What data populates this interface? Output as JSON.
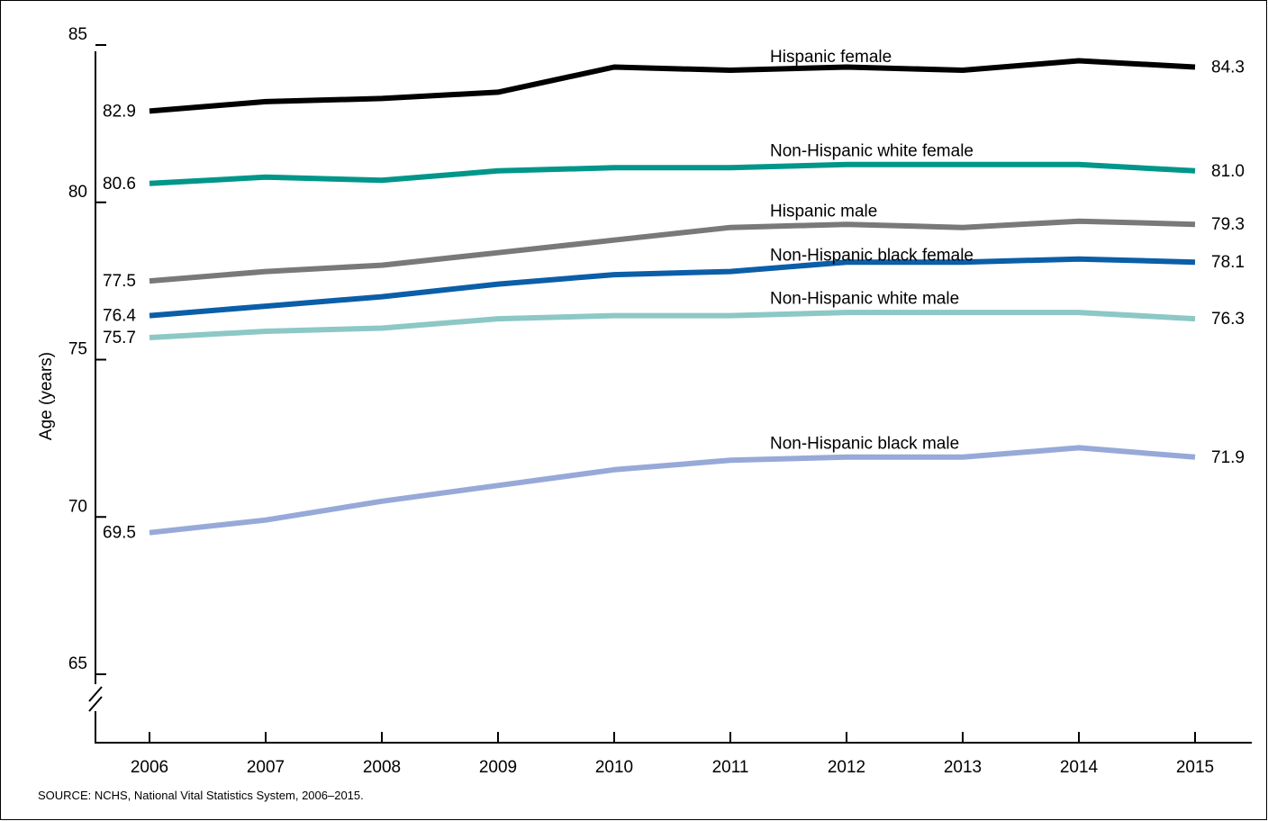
{
  "source_note": "SOURCE: NCHS, National Vital Statistics System, 2006–2015.",
  "chart_data": {
    "type": "line",
    "title": "",
    "xlabel": "",
    "ylabel": "Age (years)",
    "ylim": [
      65,
      85
    ],
    "yticks": [
      "65",
      "70",
      "75",
      "80",
      "85"
    ],
    "y_axis_break": true,
    "grid": false,
    "legend": "inline labels on lines",
    "x": [
      "2006",
      "2007",
      "2008",
      "2009",
      "2010",
      "2011",
      "2012",
      "2013",
      "2014",
      "2015"
    ],
    "series": [
      {
        "name": "Hispanic female",
        "color": "#000000",
        "values": [
          82.9,
          83.2,
          83.3,
          83.5,
          84.3,
          84.2,
          84.3,
          84.2,
          84.5,
          84.3
        ],
        "start_label": "82.9",
        "end_label": "84.3"
      },
      {
        "name": "Non-Hispanic white female",
        "color": "#00968a",
        "values": [
          80.6,
          80.8,
          80.7,
          81.0,
          81.1,
          81.1,
          81.2,
          81.2,
          81.2,
          81.0
        ],
        "start_label": "80.6",
        "end_label": "81.0"
      },
      {
        "name": "Hispanic male",
        "color": "#7a7879",
        "values": [
          77.5,
          77.8,
          78.0,
          78.4,
          78.8,
          79.2,
          79.3,
          79.2,
          79.4,
          79.3
        ],
        "start_label": "77.5",
        "end_label": "79.3"
      },
      {
        "name": "Non-Hispanic black female",
        "color": "#0b5ea8",
        "values": [
          76.4,
          76.7,
          77.0,
          77.4,
          77.7,
          77.8,
          78.1,
          78.1,
          78.2,
          78.1
        ],
        "start_label": "76.4",
        "end_label": "78.1"
      },
      {
        "name": "Non-Hispanic white male",
        "color": "#8cc8c5",
        "values": [
          75.7,
          75.9,
          76.0,
          76.3,
          76.4,
          76.4,
          76.5,
          76.5,
          76.5,
          76.3
        ],
        "start_label": "75.7",
        "end_label": "76.3"
      },
      {
        "name": "Non-Hispanic black male",
        "color": "#97a9d8",
        "values": [
          69.5,
          69.9,
          70.5,
          71.0,
          71.5,
          71.8,
          71.9,
          71.9,
          72.2,
          71.9
        ],
        "start_label": "69.5",
        "end_label": "71.9"
      }
    ]
  }
}
